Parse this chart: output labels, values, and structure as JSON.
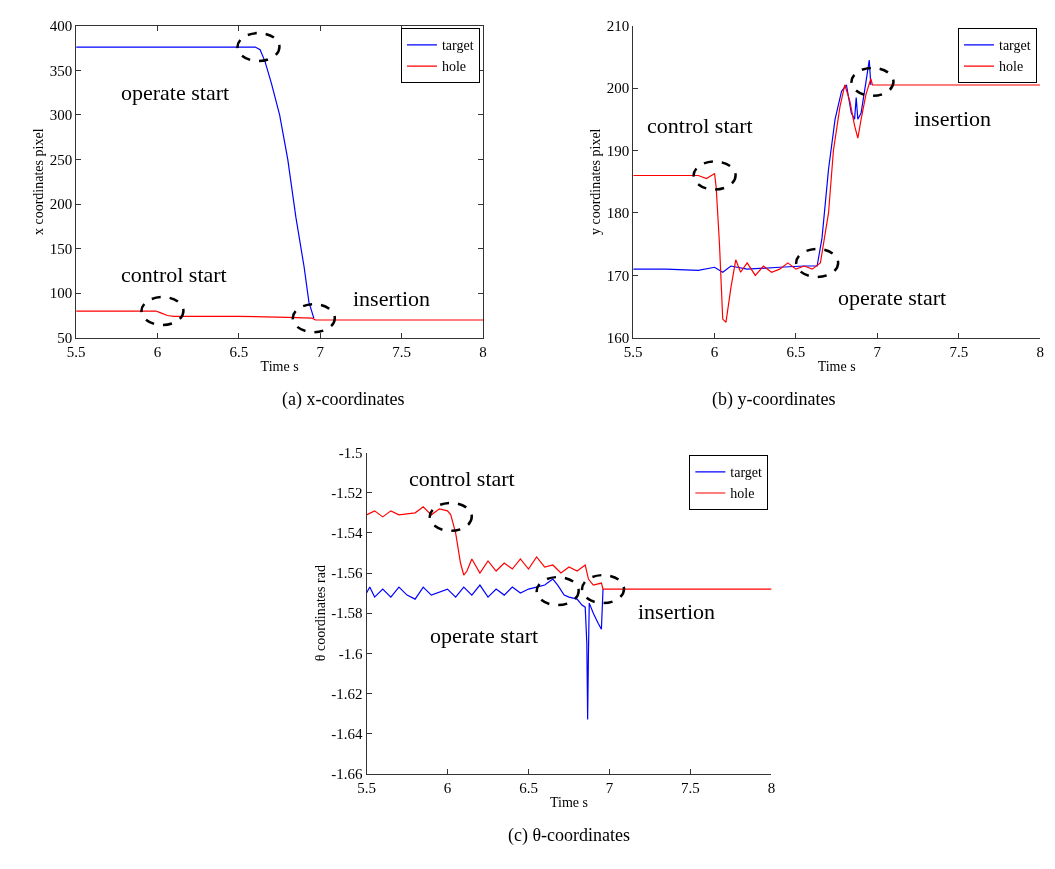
{
  "chart_data": [
    {
      "type": "line",
      "title": "(a) x-coordinates",
      "xlabel": "Time s",
      "ylabel": "x coordinates pixel",
      "xlim": [
        5.5,
        8
      ],
      "ylim": [
        50,
        400
      ],
      "xticks": [
        5.5,
        6,
        6.5,
        7,
        7.5,
        8
      ],
      "yticks": [
        50,
        100,
        150,
        200,
        250,
        300,
        350,
        400
      ],
      "legend": "top right",
      "series": [
        {
          "name": "target",
          "color": "#0000ff",
          "x": [
            5.5,
            6.0,
            6.5,
            6.6,
            6.63,
            6.66,
            6.7,
            6.75,
            6.8,
            6.85,
            6.9,
            6.93,
            6.96
          ],
          "values": [
            376,
            376,
            376,
            376,
            373,
            360,
            335,
            300,
            250,
            185,
            130,
            90,
            72
          ]
        },
        {
          "name": "hole",
          "color": "#ff0000",
          "x": [
            5.5,
            5.99,
            6.02,
            6.06,
            6.1,
            6.5,
            6.8,
            6.95,
            6.97,
            8
          ],
          "values": [
            80,
            80,
            78,
            75,
            74,
            74,
            73,
            72,
            70,
            70
          ]
        }
      ],
      "annotations": [
        {
          "text": "operate start",
          "x": 6.62,
          "y": 376
        },
        {
          "text": "control start",
          "x": 6.03,
          "y": 80
        },
        {
          "text": "insertion",
          "x": 6.96,
          "y": 72
        }
      ]
    },
    {
      "type": "line",
      "title": "(b) y-coordinates",
      "xlabel": "Time s",
      "ylabel": "y coordinates pixel",
      "xlim": [
        5.5,
        8
      ],
      "ylim": [
        160,
        210
      ],
      "xticks": [
        5.5,
        6,
        6.5,
        7,
        7.5,
        8
      ],
      "yticks": [
        160,
        170,
        180,
        190,
        200,
        210
      ],
      "legend": "top right",
      "series": [
        {
          "name": "target",
          "color": "#0000ff",
          "x": [
            5.5,
            5.7,
            5.9,
            6.0,
            6.05,
            6.1,
            6.2,
            6.4,
            6.55,
            6.63,
            6.66,
            6.7,
            6.74,
            6.78,
            6.81,
            6.84,
            6.86,
            6.87,
            6.88,
            6.9,
            6.93,
            6.95,
            6.96
          ],
          "values": [
            171,
            171,
            170.8,
            171.3,
            170.5,
            171.5,
            171,
            171.3,
            171.5,
            171.5,
            176,
            187,
            195,
            199.5,
            200.5,
            196,
            195,
            198.5,
            195,
            196,
            201,
            204.5,
            200.5
          ]
        },
        {
          "name": "hole",
          "color": "#ff0000",
          "x": [
            5.5,
            5.9,
            5.95,
            5.98,
            6.0,
            6.01,
            6.03,
            6.05,
            6.07,
            6.1,
            6.13,
            6.16,
            6.2,
            6.25,
            6.3,
            6.35,
            6.4,
            6.45,
            6.5,
            6.55,
            6.6,
            6.65,
            6.7,
            6.73,
            6.77,
            6.8,
            6.83,
            6.86,
            6.88,
            6.9,
            6.93,
            6.96,
            6.97,
            8
          ],
          "values": [
            186,
            186,
            185.5,
            186,
            186.3,
            184,
            175,
            163,
            162.5,
            168,
            172.5,
            170.5,
            172,
            170,
            171.5,
            170.5,
            171,
            172,
            171,
            171.5,
            171,
            172,
            180,
            190,
            197,
            200.5,
            198,
            194,
            192,
            195,
            199,
            201.5,
            200.5,
            200.5
          ]
        }
      ],
      "annotations": [
        {
          "text": "control start",
          "x": 6.0,
          "y": 186
        },
        {
          "text": "operate start",
          "x": 6.63,
          "y": 172
        },
        {
          "text": "insertion",
          "x": 6.97,
          "y": 201
        }
      ]
    },
    {
      "type": "line",
      "title": "(c) θ-coordinates",
      "xlabel": "Time s",
      "ylabel": "θ coordinates rad",
      "xlim": [
        5.5,
        8
      ],
      "ylim": [
        -1.66,
        -1.5
      ],
      "xticks": [
        5.5,
        6,
        6.5,
        7,
        7.5,
        8
      ],
      "yticks": [
        -1.66,
        -1.64,
        -1.62,
        -1.6,
        -1.58,
        -1.56,
        -1.54,
        -1.52,
        -1.5
      ],
      "legend": "top right",
      "series": [
        {
          "name": "target",
          "color": "#0000ff",
          "x": [
            5.5,
            5.52,
            5.55,
            5.6,
            5.65,
            5.7,
            5.75,
            5.8,
            5.85,
            5.9,
            6.0,
            6.05,
            6.1,
            6.15,
            6.2,
            6.25,
            6.3,
            6.35,
            6.4,
            6.45,
            6.5,
            6.55,
            6.6,
            6.65,
            6.68,
            6.72,
            6.75,
            6.8,
            6.83,
            6.85,
            6.86,
            6.865,
            6.87,
            6.875,
            6.9,
            6.93,
            6.95,
            6.96
          ],
          "values": [
            -1.57,
            -1.567,
            -1.572,
            -1.568,
            -1.572,
            -1.567,
            -1.571,
            -1.573,
            -1.567,
            -1.571,
            -1.568,
            -1.572,
            -1.567,
            -1.571,
            -1.566,
            -1.572,
            -1.568,
            -1.571,
            -1.567,
            -1.57,
            -1.568,
            -1.567,
            -1.566,
            -1.563,
            -1.566,
            -1.571,
            -1.572,
            -1.573,
            -1.576,
            -1.577,
            -1.595,
            -1.633,
            -1.6,
            -1.575,
            -1.58,
            -1.585,
            -1.588,
            -1.568
          ]
        },
        {
          "name": "hole",
          "color": "#ff0000",
          "x": [
            5.5,
            5.55,
            5.6,
            5.65,
            5.7,
            5.8,
            5.85,
            5.9,
            5.95,
            6.0,
            6.02,
            6.05,
            6.08,
            6.1,
            6.12,
            6.15,
            6.2,
            6.25,
            6.3,
            6.35,
            6.4,
            6.45,
            6.5,
            6.55,
            6.6,
            6.65,
            6.7,
            6.75,
            6.8,
            6.85,
            6.87,
            6.9,
            6.95,
            6.96,
            8
          ],
          "values": [
            -1.531,
            -1.529,
            -1.532,
            -1.529,
            -1.531,
            -1.53,
            -1.527,
            -1.531,
            -1.528,
            -1.529,
            -1.531,
            -1.54,
            -1.555,
            -1.561,
            -1.559,
            -1.553,
            -1.56,
            -1.554,
            -1.559,
            -1.555,
            -1.558,
            -1.553,
            -1.558,
            -1.552,
            -1.557,
            -1.556,
            -1.56,
            -1.557,
            -1.559,
            -1.556,
            -1.563,
            -1.566,
            -1.565,
            -1.568,
            -1.568
          ]
        }
      ],
      "annotations": [
        {
          "text": "control start",
          "x": 6.02,
          "y": -1.532
        },
        {
          "text": "operate start",
          "x": 6.68,
          "y": -1.569
        },
        {
          "text": "insertion",
          "x": 6.96,
          "y": -1.568
        }
      ]
    }
  ]
}
